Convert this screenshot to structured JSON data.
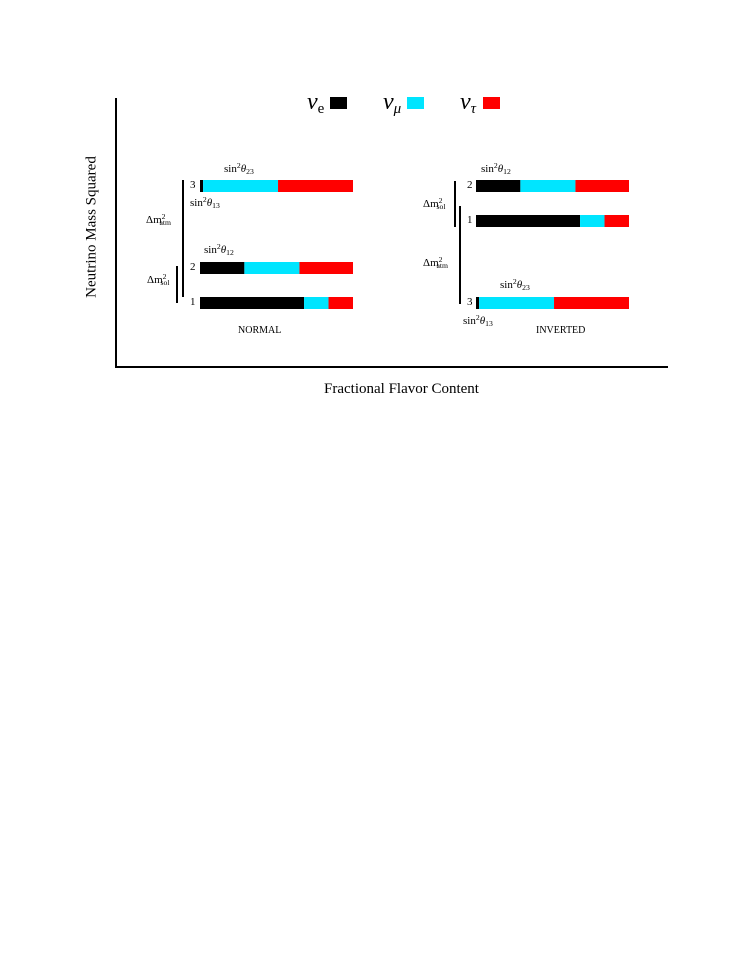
{
  "axes": {
    "y_label": "Neutrino Mass Squared",
    "x_label": "Fractional Flavor Content"
  },
  "legend": {
    "items": [
      {
        "symbol": "ν",
        "sub": "e",
        "color": "#000000"
      },
      {
        "symbol": "ν",
        "sub": "μ",
        "color": "#00e5ff"
      },
      {
        "symbol": "ν",
        "sub": "τ",
        "color": "#ff0000"
      }
    ]
  },
  "hierarchies": {
    "normal": {
      "title": "NORMAL",
      "states": [
        {
          "label": "3",
          "fractions": [
            0.02,
            0.49,
            0.49
          ]
        },
        {
          "label": "2",
          "fractions": [
            0.29,
            0.36,
            0.35
          ]
        },
        {
          "label": "1",
          "fractions": [
            0.68,
            0.16,
            0.16
          ]
        }
      ],
      "mixing_labels": {
        "upper_sin": "sin",
        "upper_power": "2",
        "upper_theta": "θ",
        "upper_index": "23",
        "mid_sin": "sin",
        "mid_power": "2",
        "mid_theta": "θ",
        "mid_index": "13",
        "lower_sin": "sin",
        "lower_power": "2",
        "lower_theta": "θ",
        "lower_index": "12"
      },
      "splittings": {
        "atm_delta": "Δm",
        "atm_power": "2",
        "atm_sub": "atm",
        "sol_delta": "Δm",
        "sol_power": "2",
        "sol_sub": "sol"
      }
    },
    "inverted": {
      "title": "INVERTED",
      "states": [
        {
          "label": "2",
          "fractions": [
            0.29,
            0.36,
            0.35
          ]
        },
        {
          "label": "1",
          "fractions": [
            0.68,
            0.16,
            0.16
          ]
        },
        {
          "label": "3",
          "fractions": [
            0.02,
            0.49,
            0.49
          ]
        }
      ],
      "mixing_labels": {
        "top_sin": "sin",
        "top_power": "2",
        "top_theta": "θ",
        "top_index": "12",
        "bottom_sin": "sin",
        "bottom_power": "2",
        "bottom_theta": "θ",
        "bottom_index": "23",
        "under_sin": "sin",
        "under_power": "2",
        "under_theta": "θ",
        "under_index": "13"
      },
      "splittings": {
        "sol_delta": "Δm",
        "sol_power": "2",
        "sol_sub": "sol",
        "atm_delta": "Δm",
        "atm_power": "2",
        "atm_sub": "atm"
      }
    }
  }
}
